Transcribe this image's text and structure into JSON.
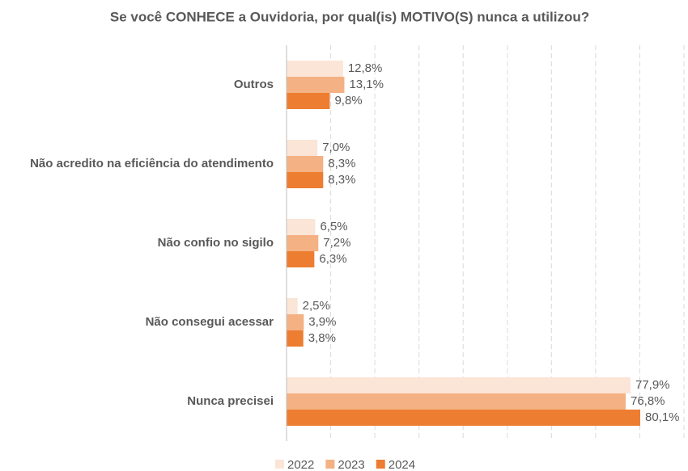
{
  "chart_data": {
    "type": "hbar",
    "title": "Se você CONHECE a Ouvidoria, por qual(is) MOTIVO(S) nunca a utilizou?",
    "categories": [
      "Outros",
      "Não acredito na eficiência do atendimento",
      "Não confio no sigilo",
      "Não consegui acessar",
      "Nunca precisei"
    ],
    "series": [
      {
        "name": "2022",
        "color": "#fbe5d6",
        "values": [
          12.8,
          7.0,
          6.5,
          2.5,
          77.9
        ],
        "value_labels": [
          "12,8%",
          "7,0%",
          "6,5%",
          "2,5%",
          "77,9%"
        ]
      },
      {
        "name": "2023",
        "color": "#f4b183",
        "values": [
          13.1,
          8.3,
          7.2,
          3.9,
          76.8
        ],
        "value_labels": [
          "13,1%",
          "8,3%",
          "7,2%",
          "3,9%",
          "76,8%"
        ]
      },
      {
        "name": "2024",
        "color": "#ed7d31",
        "values": [
          9.8,
          8.3,
          6.3,
          3.8,
          80.1
        ],
        "value_labels": [
          "9,8%",
          "8,3%",
          "6,3%",
          "3,8%",
          "80,1%"
        ]
      }
    ],
    "xlim": [
      0,
      90
    ],
    "xticks": [
      0,
      10,
      20,
      30,
      40,
      50,
      60,
      70,
      80,
      90
    ],
    "grid": true,
    "legend": "bottom"
  }
}
